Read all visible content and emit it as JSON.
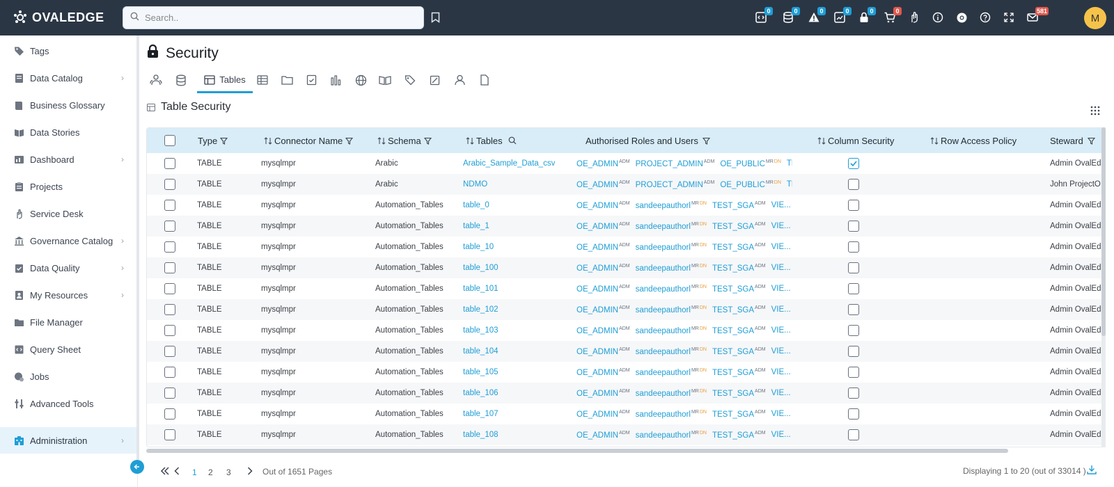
{
  "app": {
    "logo_text": "OVALEDGE"
  },
  "header": {
    "search_placeholder": "Search..",
    "badges": [
      "0",
      "0",
      "0",
      "0",
      "0",
      "0",
      "581"
    ],
    "avatar_initial": "M"
  },
  "sidebar": {
    "items": [
      {
        "label": "Tags",
        "icon": "tag-icon",
        "chevron": false
      },
      {
        "label": "Data Catalog",
        "icon": "catalog-icon",
        "chevron": true
      },
      {
        "label": "Business Glossary",
        "icon": "book-icon",
        "chevron": false
      },
      {
        "label": "Data Stories",
        "icon": "stories-icon",
        "chevron": false
      },
      {
        "label": "Dashboard",
        "icon": "dashboard-icon",
        "chevron": true
      },
      {
        "label": "Projects",
        "icon": "projects-icon",
        "chevron": false
      },
      {
        "label": "Service Desk",
        "icon": "service-desk-icon",
        "chevron": false
      },
      {
        "label": "Governance Catalog",
        "icon": "governance-icon",
        "chevron": true
      },
      {
        "label": "Data Quality",
        "icon": "quality-icon",
        "chevron": true
      },
      {
        "label": "My Resources",
        "icon": "resources-icon",
        "chevron": true
      },
      {
        "label": "File Manager",
        "icon": "folder-icon",
        "chevron": false
      },
      {
        "label": "Query Sheet",
        "icon": "query-icon",
        "chevron": false
      },
      {
        "label": "Jobs",
        "icon": "jobs-icon",
        "chevron": false
      },
      {
        "label": "Advanced Tools",
        "icon": "tools-icon",
        "chevron": false
      },
      {
        "label": "Administration",
        "icon": "admin-icon",
        "chevron": true,
        "active": true
      }
    ]
  },
  "page": {
    "title": "Security",
    "active_tab": "Tables",
    "section_title": "Table Security"
  },
  "table": {
    "headers": {
      "type": "Type",
      "connector": "Connector Name",
      "schema": "Schema",
      "tables": "Tables",
      "roles": "Authorised Roles and Users",
      "column_security": "Column Security",
      "row_policy": "Row Access Policy",
      "steward": "Steward"
    },
    "rows": [
      {
        "type": "TABLE",
        "connector": "mysqlmpr",
        "schema": "Arabic",
        "table": "Arabic_Sample_Data_csv",
        "r1": "OE_ADMIN",
        "s1": "ADM",
        "r2": "PROJECT_ADMIN",
        "s2": "ADM",
        "r3": "OE_PUBLIC",
        "s3a": "MR",
        "s3b": "DN",
        "r4": "TE...",
        "col_sec": true,
        "steward": "Admin OvalEd"
      },
      {
        "type": "TABLE",
        "connector": "mysqlmpr",
        "schema": "Arabic",
        "table": "NDMO",
        "r1": "OE_ADMIN",
        "s1": "ADM",
        "r2": "PROJECT_ADMIN",
        "s2": "ADM",
        "r3": "OE_PUBLIC",
        "s3a": "MR",
        "s3b": "DN",
        "r4": "TE...",
        "col_sec": false,
        "steward": "John ProjectO"
      },
      {
        "type": "TABLE",
        "connector": "mysqlmpr",
        "schema": "Automation_Tables",
        "table": "table_0",
        "r1": "OE_ADMIN",
        "s1": "ADM",
        "r2": "sandeepauthorl",
        "s2a": "MR",
        "s2b": "DN",
        "r3": "TEST_SGA",
        "s3": "ADM",
        "r4": "VIE...",
        "col_sec": false,
        "steward": "Admin OvalEd"
      },
      {
        "type": "TABLE",
        "connector": "mysqlmpr",
        "schema": "Automation_Tables",
        "table": "table_1",
        "r1": "OE_ADMIN",
        "s1": "ADM",
        "r2": "sandeepauthorl",
        "s2a": "MR",
        "s2b": "DN",
        "r3": "TEST_SGA",
        "s3": "ADM",
        "r4": "VIE...",
        "col_sec": false,
        "steward": "Admin OvalEd"
      },
      {
        "type": "TABLE",
        "connector": "mysqlmpr",
        "schema": "Automation_Tables",
        "table": "table_10",
        "r1": "OE_ADMIN",
        "s1": "ADM",
        "r2": "sandeepauthorl",
        "s2a": "MR",
        "s2b": "DN",
        "r3": "TEST_SGA",
        "s3": "ADM",
        "r4": "VIE...",
        "col_sec": false,
        "steward": "Admin OvalEd"
      },
      {
        "type": "TABLE",
        "connector": "mysqlmpr",
        "schema": "Automation_Tables",
        "table": "table_100",
        "r1": "OE_ADMIN",
        "s1": "ADM",
        "r2": "sandeepauthorl",
        "s2a": "MR",
        "s2b": "DN",
        "r3": "TEST_SGA",
        "s3": "ADM",
        "r4": "VIE...",
        "col_sec": false,
        "steward": "Admin OvalEd"
      },
      {
        "type": "TABLE",
        "connector": "mysqlmpr",
        "schema": "Automation_Tables",
        "table": "table_101",
        "r1": "OE_ADMIN",
        "s1": "ADM",
        "r2": "sandeepauthorl",
        "s2a": "MR",
        "s2b": "DN",
        "r3": "TEST_SGA",
        "s3": "ADM",
        "r4": "VIE...",
        "col_sec": false,
        "steward": "Admin OvalEd"
      },
      {
        "type": "TABLE",
        "connector": "mysqlmpr",
        "schema": "Automation_Tables",
        "table": "table_102",
        "r1": "OE_ADMIN",
        "s1": "ADM",
        "r2": "sandeepauthorl",
        "s2a": "MR",
        "s2b": "DN",
        "r3": "TEST_SGA",
        "s3": "ADM",
        "r4": "VIE...",
        "col_sec": false,
        "steward": "Admin OvalEd"
      },
      {
        "type": "TABLE",
        "connector": "mysqlmpr",
        "schema": "Automation_Tables",
        "table": "table_103",
        "r1": "OE_ADMIN",
        "s1": "ADM",
        "r2": "sandeepauthorl",
        "s2a": "MR",
        "s2b": "DN",
        "r3": "TEST_SGA",
        "s3": "ADM",
        "r4": "VIE...",
        "col_sec": false,
        "steward": "Admin OvalEd"
      },
      {
        "type": "TABLE",
        "connector": "mysqlmpr",
        "schema": "Automation_Tables",
        "table": "table_104",
        "r1": "OE_ADMIN",
        "s1": "ADM",
        "r2": "sandeepauthorl",
        "s2a": "MR",
        "s2b": "DN",
        "r3": "TEST_SGA",
        "s3": "ADM",
        "r4": "VIE...",
        "col_sec": false,
        "steward": "Admin OvalEd"
      },
      {
        "type": "TABLE",
        "connector": "mysqlmpr",
        "schema": "Automation_Tables",
        "table": "table_105",
        "r1": "OE_ADMIN",
        "s1": "ADM",
        "r2": "sandeepauthorl",
        "s2a": "MR",
        "s2b": "DN",
        "r3": "TEST_SGA",
        "s3": "ADM",
        "r4": "VIE...",
        "col_sec": false,
        "steward": "Admin OvalEd"
      },
      {
        "type": "TABLE",
        "connector": "mysqlmpr",
        "schema": "Automation_Tables",
        "table": "table_106",
        "r1": "OE_ADMIN",
        "s1": "ADM",
        "r2": "sandeepauthorl",
        "s2a": "MR",
        "s2b": "DN",
        "r3": "TEST_SGA",
        "s3": "ADM",
        "r4": "VIE...",
        "col_sec": false,
        "steward": "Admin OvalEd"
      },
      {
        "type": "TABLE",
        "connector": "mysqlmpr",
        "schema": "Automation_Tables",
        "table": "table_107",
        "r1": "OE_ADMIN",
        "s1": "ADM",
        "r2": "sandeepauthorl",
        "s2a": "MR",
        "s2b": "DN",
        "r3": "TEST_SGA",
        "s3": "ADM",
        "r4": "VIE...",
        "col_sec": false,
        "steward": "Admin OvalEd"
      },
      {
        "type": "TABLE",
        "connector": "mysqlmpr",
        "schema": "Automation_Tables",
        "table": "table_108",
        "r1": "OE_ADMIN",
        "s1": "ADM",
        "r2": "sandeepauthorl",
        "s2a": "MR",
        "s2b": "DN",
        "r3": "TEST_SGA",
        "s3": "ADM",
        "r4": "VIE...",
        "col_sec": false,
        "steward": "Admin OvalEd"
      }
    ]
  },
  "pagination": {
    "pages": [
      "1",
      "2",
      "3"
    ],
    "active_page": "1",
    "out_of": "Out of 1651 Pages",
    "displaying": "Displaying 1 to 20 (out of 33014 )"
  },
  "colors": {
    "topbar": "#2b3645",
    "accent": "#1e9ed6",
    "header_bg": "#d8edf8"
  }
}
